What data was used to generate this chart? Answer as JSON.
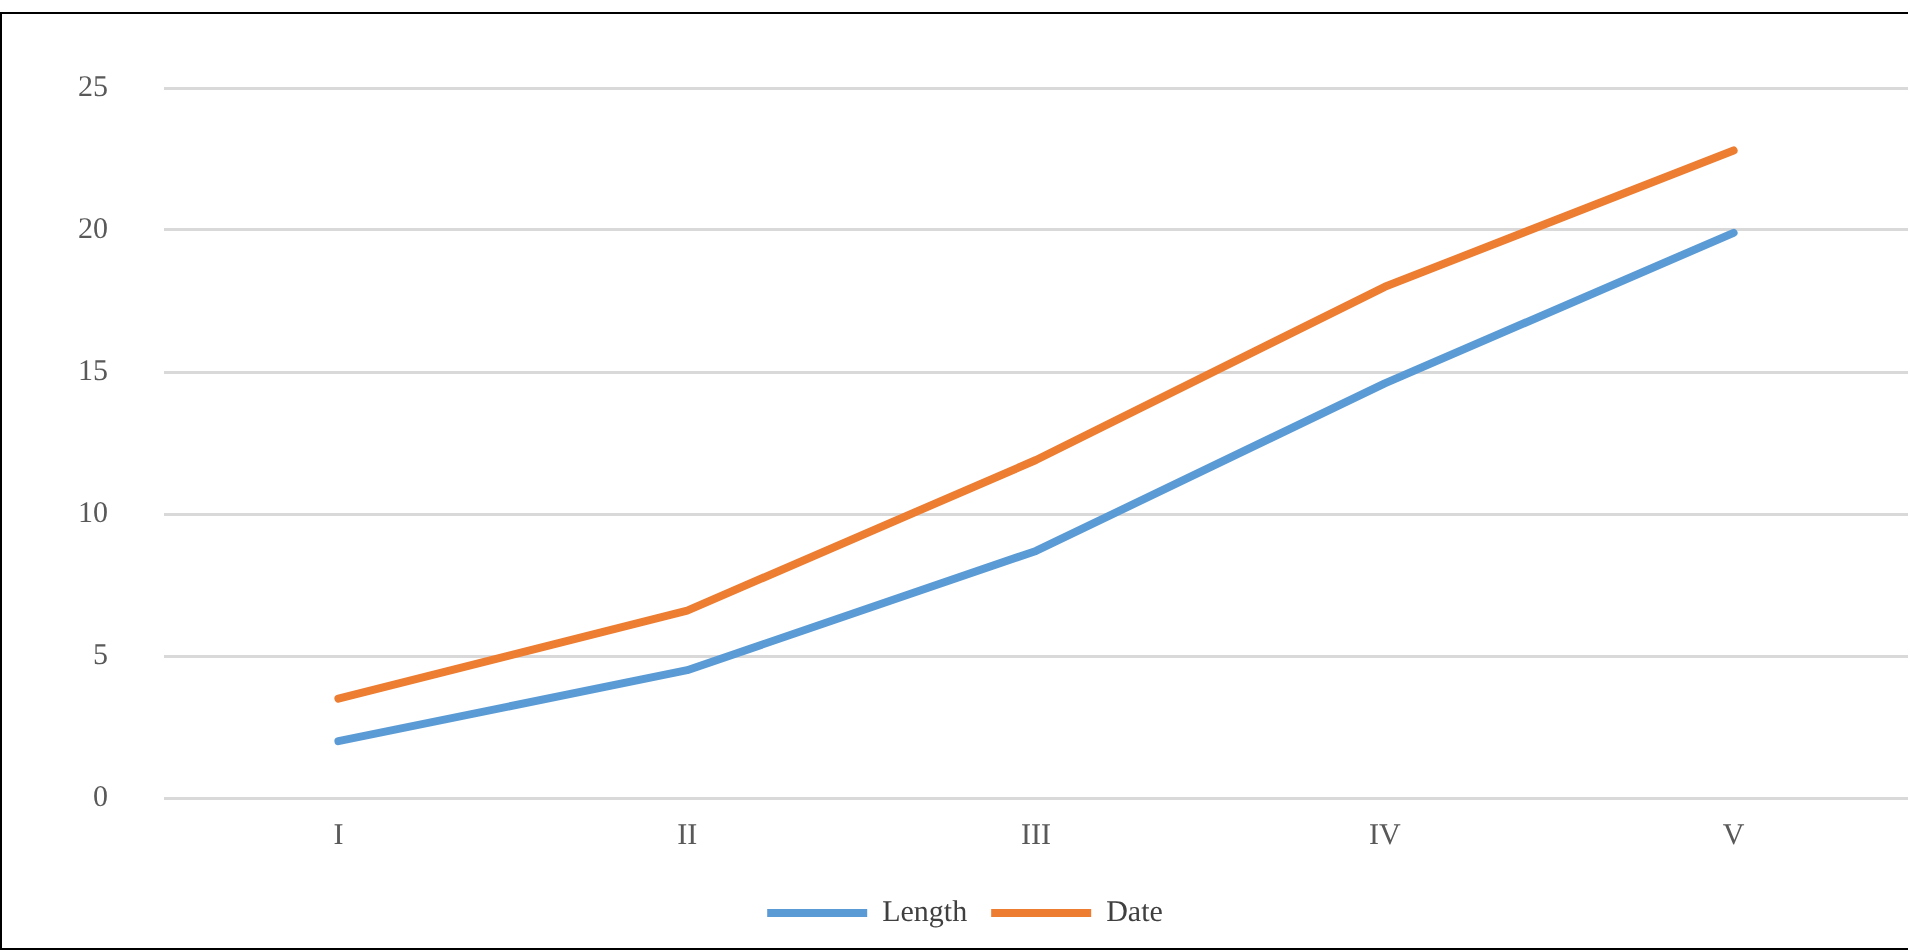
{
  "chart_data": {
    "type": "line",
    "categories": [
      "I",
      "II",
      "III",
      "IV",
      "V"
    ],
    "series": [
      {
        "name": "Length",
        "color": "#5b9bd5",
        "values": [
          2.0,
          4.5,
          8.7,
          14.6,
          19.9
        ]
      },
      {
        "name": "Date",
        "color": "#ed7d31",
        "values": [
          3.5,
          6.6,
          11.9,
          18.0,
          22.8
        ]
      }
    ],
    "ylim": [
      0,
      25
    ],
    "yticks": [
      0,
      5,
      10,
      15,
      20,
      25
    ],
    "grid": "y",
    "legend": "bottom",
    "marker": "none",
    "line_style": "solid"
  }
}
